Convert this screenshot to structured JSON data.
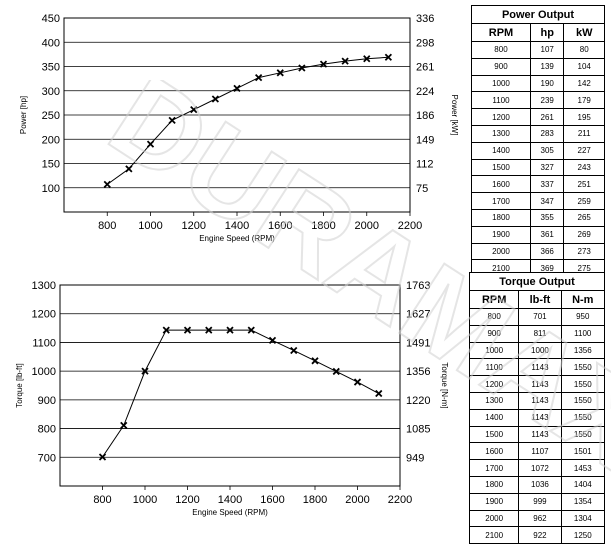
{
  "watermark": "DURAMAX",
  "chart_data": [
    {
      "type": "line",
      "xlabel": "Engine Speed (RPM)",
      "ylabel": "Power [hp]",
      "y2label": "Power [kW]",
      "xlim": [
        600,
        2200
      ],
      "ylim": [
        50,
        450
      ],
      "x_ticks": [
        800,
        1000,
        1200,
        1400,
        1600,
        1800,
        2000,
        2200
      ],
      "y_ticks": [
        100,
        150,
        200,
        250,
        300,
        350,
        400,
        450
      ],
      "y2_ticks": [
        "75",
        "112",
        "149",
        "186",
        "224",
        "261",
        "298",
        "336"
      ],
      "grid": "horizontal",
      "marker": "x",
      "x": [
        800,
        900,
        1000,
        1100,
        1200,
        1300,
        1400,
        1500,
        1600,
        1700,
        1800,
        1900,
        2000,
        2100
      ],
      "values": [
        107,
        139,
        190,
        239,
        261,
        283,
        305,
        327,
        337,
        347,
        355,
        361,
        366,
        369
      ]
    },
    {
      "type": "line",
      "xlabel": "Engine Speed (RPM)",
      "ylabel": "Torque [lb-ft]",
      "y2label": "Torque [N-m]",
      "xlim": [
        600,
        2200
      ],
      "ylim": [
        600,
        1300
      ],
      "x_ticks": [
        800,
        1000,
        1200,
        1400,
        1600,
        1800,
        2000,
        2200
      ],
      "y_ticks": [
        700,
        800,
        900,
        1000,
        1100,
        1200,
        1300
      ],
      "y2_ticks": [
        "949",
        "1085",
        "1220",
        "1356",
        "1491",
        "1627",
        "1763"
      ],
      "grid": "horizontal",
      "marker": "x",
      "x": [
        800,
        900,
        1000,
        1100,
        1200,
        1300,
        1400,
        1500,
        1600,
        1700,
        1800,
        1900,
        2000,
        2100
      ],
      "values": [
        701,
        811,
        1000,
        1143,
        1143,
        1143,
        1143,
        1143,
        1107,
        1072,
        1036,
        999,
        962,
        922
      ]
    }
  ],
  "power_table": {
    "title": "Power Output",
    "headers": [
      "RPM",
      "hp",
      "kW"
    ],
    "rows": [
      [
        "800",
        "107",
        "80"
      ],
      [
        "900",
        "139",
        "104"
      ],
      [
        "1000",
        "190",
        "142"
      ],
      [
        "1100",
        "239",
        "179"
      ],
      [
        "1200",
        "261",
        "195"
      ],
      [
        "1300",
        "283",
        "211"
      ],
      [
        "1400",
        "305",
        "227"
      ],
      [
        "1500",
        "327",
        "243"
      ],
      [
        "1600",
        "337",
        "251"
      ],
      [
        "1700",
        "347",
        "259"
      ],
      [
        "1800",
        "355",
        "265"
      ],
      [
        "1900",
        "361",
        "269"
      ],
      [
        "2000",
        "366",
        "273"
      ],
      [
        "2100",
        "369",
        "275"
      ]
    ]
  },
  "torque_table": {
    "title": "Torque Output",
    "headers": [
      "RPM",
      "lb-ft",
      "N-m"
    ],
    "rows": [
      [
        "800",
        "701",
        "950"
      ],
      [
        "900",
        "811",
        "1100"
      ],
      [
        "1000",
        "1000",
        "1356"
      ],
      [
        "1100",
        "1143",
        "1550"
      ],
      [
        "1200",
        "1143",
        "1550"
      ],
      [
        "1300",
        "1143",
        "1550"
      ],
      [
        "1400",
        "1143",
        "1550"
      ],
      [
        "1500",
        "1143",
        "1550"
      ],
      [
        "1600",
        "1107",
        "1501"
      ],
      [
        "1700",
        "1072",
        "1453"
      ],
      [
        "1800",
        "1036",
        "1404"
      ],
      [
        "1900",
        "999",
        "1354"
      ],
      [
        "2000",
        "962",
        "1304"
      ],
      [
        "2100",
        "922",
        "1250"
      ]
    ]
  }
}
